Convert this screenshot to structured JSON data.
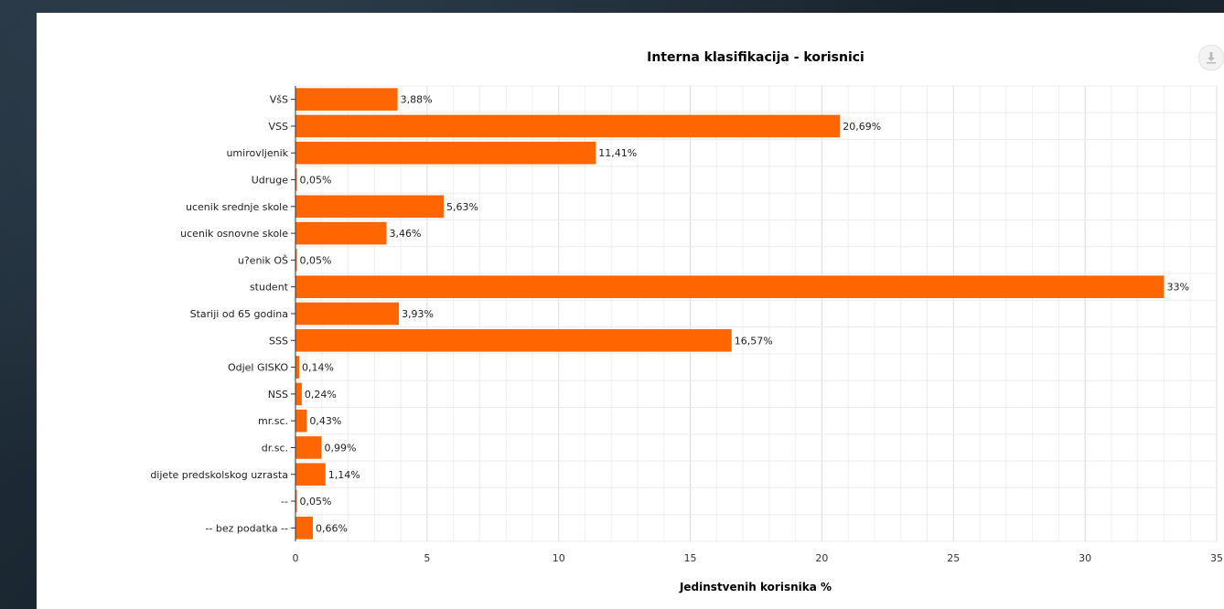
{
  "chart_data": {
    "type": "bar",
    "orientation": "horizontal",
    "title": "Interna klasifikacija - korisnici",
    "xlabel": "Jedinstvenih korisnika %",
    "ylabel": "",
    "xlim": [
      0,
      35
    ],
    "x_ticks": [
      "0",
      "5",
      "10",
      "15",
      "20",
      "25",
      "30",
      "35"
    ],
    "grid": true,
    "bar_color": "#ff6600",
    "categories": [
      "VšS",
      "VSS",
      "umirovljenik",
      "Udruge",
      "ucenik srednje skole",
      "ucenik osnovne skole",
      "u?enik OŠ",
      "student",
      "Stariji od 65 godina",
      "SSS",
      "Odjel GISKO",
      "NSS",
      "mr.sc.",
      "dr.sc.",
      "dijete predskolskog uzrasta",
      "--",
      "-- bez podatka --"
    ],
    "values": [
      3.88,
      20.69,
      11.41,
      0.05,
      5.63,
      3.46,
      0.05,
      33,
      3.93,
      16.57,
      0.14,
      0.24,
      0.43,
      0.99,
      1.14,
      0.05,
      0.66
    ],
    "data_labels": [
      "3,88%",
      "20,69%",
      "11,41%",
      "0,05%",
      "5,63%",
      "3,46%",
      "0,05%",
      "33%",
      "3,93%",
      "16,57%",
      "0,14%",
      "0,24%",
      "0,43%",
      "0,99%",
      "1,14%",
      "0,05%",
      "0,66%"
    ]
  },
  "toolbar": {
    "download_icon": "download-icon"
  }
}
